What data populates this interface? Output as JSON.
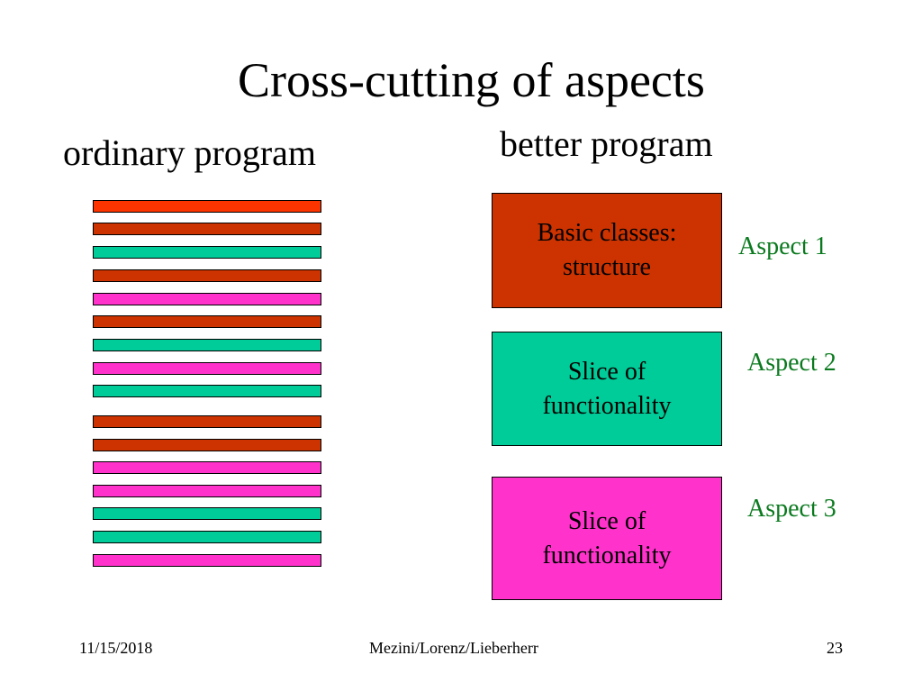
{
  "slide": {
    "title": "Cross-cutting of aspects",
    "left_heading": "ordinary program",
    "right_heading": "better program"
  },
  "colors": {
    "red": "#fd3300",
    "brick": "#cc3300",
    "teal": "#00cc99",
    "magenta": "#ff33cc",
    "aspect_text": "#0b7a1f"
  },
  "ordinary_program": {
    "stripes": [
      "red",
      "brick",
      "teal",
      "brick",
      "magenta",
      "brick",
      "teal",
      "magenta",
      "teal",
      "brick",
      "brick",
      "magenta",
      "magenta",
      "teal",
      "teal",
      "magenta"
    ]
  },
  "better_program": {
    "boxes": [
      {
        "lines": [
          "Basic classes:",
          "structure"
        ],
        "color": "brick",
        "aspect": "Aspect 1"
      },
      {
        "lines": [
          "Slice of",
          "functionality"
        ],
        "color": "teal",
        "aspect": "Aspect 2"
      },
      {
        "lines": [
          "Slice of",
          "functionality"
        ],
        "color": "magenta",
        "aspect": "Aspect 3"
      }
    ]
  },
  "footer": {
    "date": "11/15/2018",
    "authors": "Mezini/Lorenz/Lieberherr",
    "page": "23"
  }
}
